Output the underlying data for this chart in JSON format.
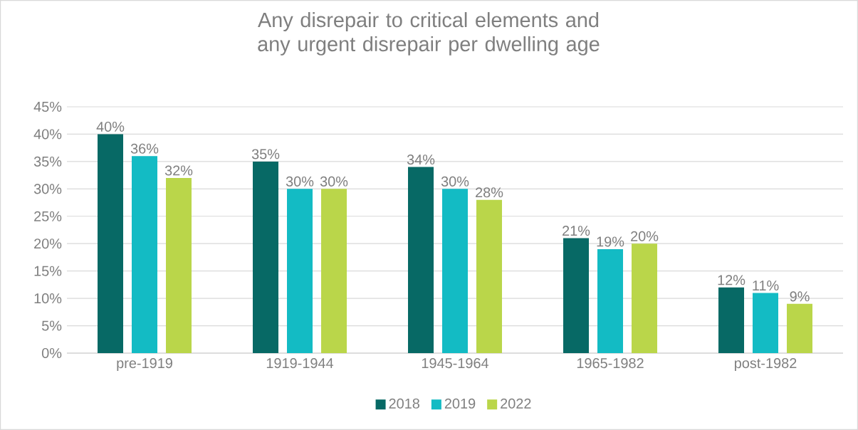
{
  "chart_data": {
    "type": "bar",
    "title": "Any disrepair to critical elements and any urgent disrepair per dwelling age",
    "categories": [
      "pre-1919",
      "1919-1944",
      "1945-1964",
      "1965-1982",
      "post-1982"
    ],
    "series": [
      {
        "name": "2018",
        "color": "#076965",
        "values": [
          40,
          35,
          34,
          21,
          12
        ],
        "value_labels": [
          "40%",
          "35%",
          "34%",
          "21%",
          "12%"
        ]
      },
      {
        "name": "2019",
        "color": "#13bbc4",
        "values": [
          36,
          30,
          30,
          19,
          11
        ],
        "value_labels": [
          "36%",
          "30%",
          "30%",
          "19%",
          "11%"
        ]
      },
      {
        "name": "2022",
        "color": "#bad64a",
        "values": [
          32,
          30,
          28,
          20,
          9
        ],
        "value_labels": [
          "32%",
          "30%",
          "28%",
          "20%",
          "9%"
        ]
      }
    ],
    "ylim": [
      0,
      45
    ],
    "yticks": [
      {
        "value": 0,
        "label": "0%"
      },
      {
        "value": 5,
        "label": "5%"
      },
      {
        "value": 10,
        "label": "10%"
      },
      {
        "value": 15,
        "label": "15%"
      },
      {
        "value": 20,
        "label": "20%"
      },
      {
        "value": 25,
        "label": "25%"
      },
      {
        "value": 30,
        "label": "30%"
      },
      {
        "value": 35,
        "label": "35%"
      },
      {
        "value": 40,
        "label": "40%"
      },
      {
        "value": 45,
        "label": "45%"
      }
    ],
    "grid": "y",
    "legend": "bottom"
  }
}
